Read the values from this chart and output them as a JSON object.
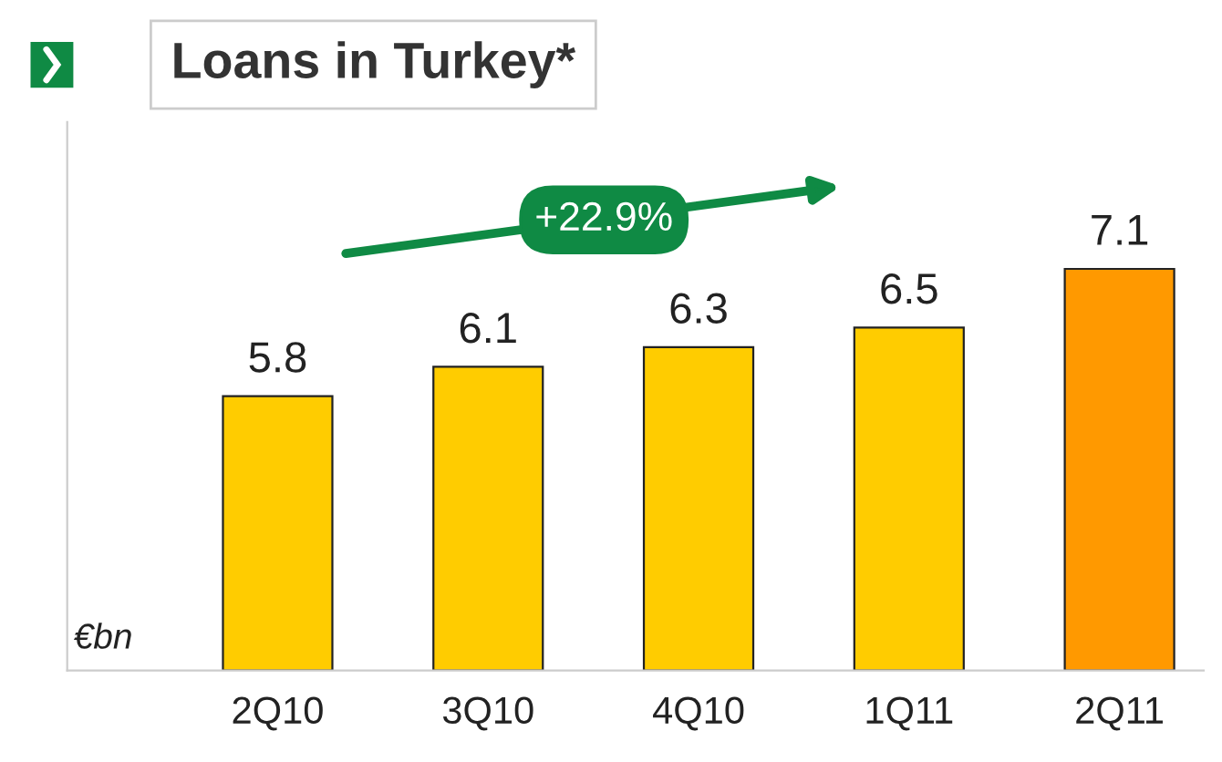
{
  "chart_data": {
    "type": "bar",
    "title": "Loans in Turkey*",
    "categories": [
      "2Q10",
      "3Q10",
      "4Q10",
      "1Q11",
      "2Q11"
    ],
    "values": [
      5.8,
      6.1,
      6.3,
      6.5,
      7.1
    ],
    "colors": [
      "#ffcc00",
      "#ffcc00",
      "#ffcc00",
      "#ffcc00",
      "#ff9900"
    ],
    "ylim": [
      3.0,
      8.6
    ],
    "tick_labels": "x",
    "data_labels": true,
    "annotations": [
      "+22.9%",
      "€bn"
    ]
  }
}
